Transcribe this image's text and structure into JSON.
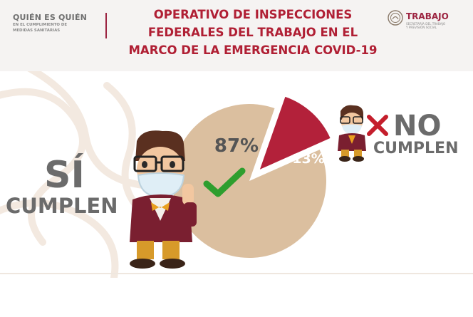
{
  "header": {
    "brand_main": "QUIÉN ES QUIÉN",
    "brand_sub_1": "EN EL CUMPLIMIENTO DE",
    "brand_sub_2": "MEDIDAS SANITARIAS",
    "title_line_1": "OPERATIVO DE INSPECCIONES",
    "title_line_2": "FEDERALES DEL TRABAJO EN EL",
    "title_line_3": "MARCO DE LA EMERGENCIA COVID-19",
    "logo_name": "TRABAJO",
    "logo_sub_1": "SECRETARÍA DEL TRABAJO",
    "logo_sub_2": "Y PREVISIÓN SOCIAL"
  },
  "labels": {
    "si": "SÍ",
    "cumplen_si": "CUMPLEN",
    "no": "NO",
    "cumplen_no": "CUMPLEN"
  },
  "icons": {
    "check": "check-icon",
    "cross": "cross-icon"
  },
  "colors": {
    "accent": "#b01f34",
    "pie_main": "#dbbf9f",
    "pie_slice": "#b3213a",
    "check": "#2e9e2e",
    "text_gray": "#6b6b6b"
  },
  "chart_data": {
    "type": "pie",
    "categories": [
      "SÍ CUMPLEN",
      "NO CUMPLEN"
    ],
    "values": [
      87,
      13
    ],
    "value_labels": [
      "87%",
      "13%"
    ],
    "exploded": [
      false,
      true
    ]
  }
}
